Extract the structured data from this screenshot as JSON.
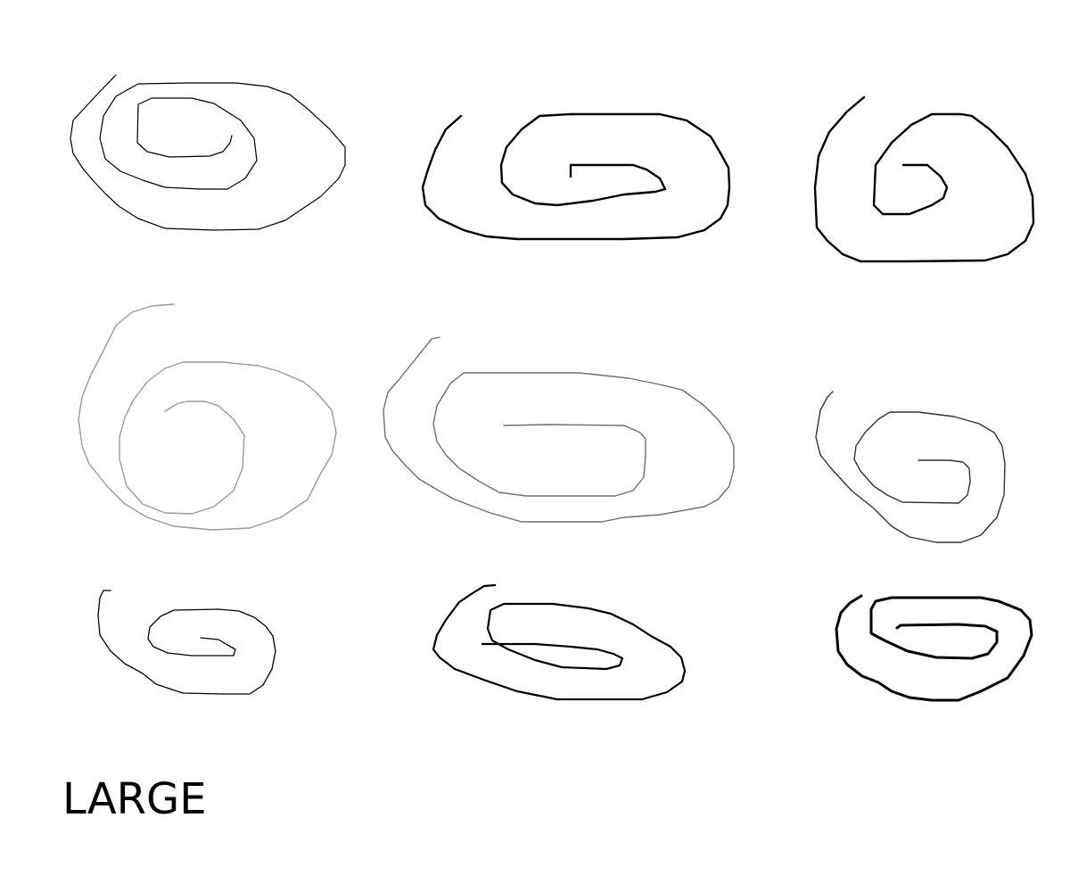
{
  "size_label": "LARGE",
  "colors": {
    "background": "#ffffff",
    "stroke_dark": "#000000",
    "stroke_mid": "#555555",
    "stroke_light": "#9a9a9a"
  }
}
